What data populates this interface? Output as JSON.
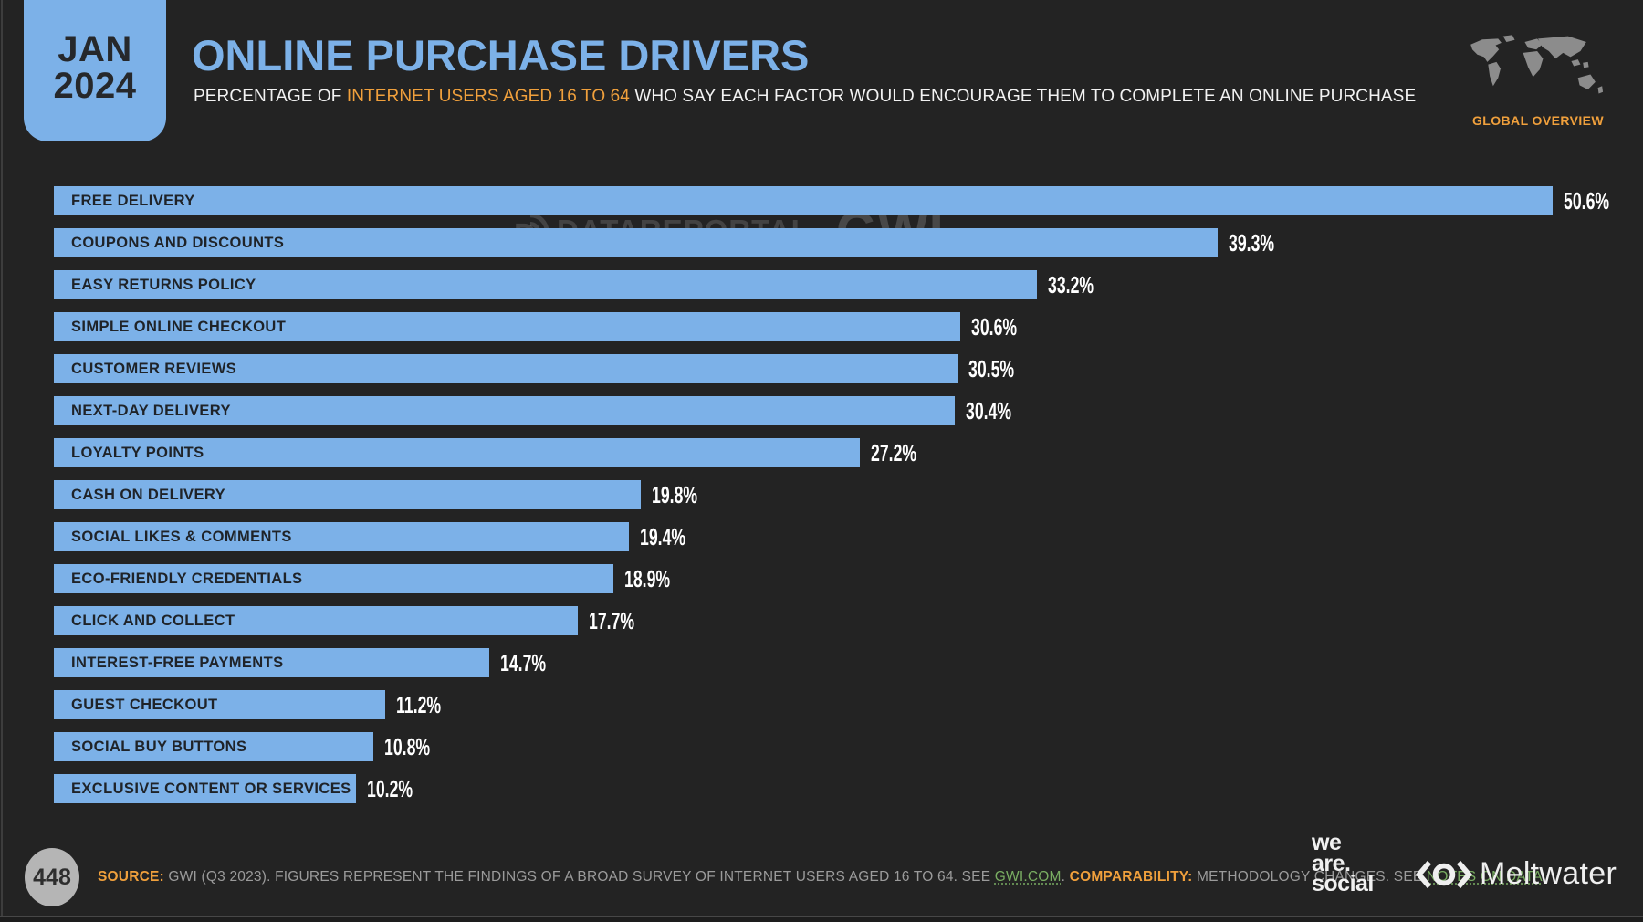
{
  "badge": {
    "month": "JAN",
    "year": "2024"
  },
  "header": {
    "title": "ONLINE PURCHASE DRIVERS",
    "subtitle_prefix": "PERCENTAGE OF ",
    "subtitle_highlight": "INTERNET USERS AGED 16 TO 64",
    "subtitle_suffix": " WHO SAY EACH FACTOR WOULD ENCOURAGE THEM TO COMPLETE AN ONLINE PURCHASE",
    "region_label": "GLOBAL OVERVIEW"
  },
  "watermark": {
    "brand1": "DATAREPORTAL",
    "brand2": "GWI."
  },
  "chart_data": {
    "type": "bar",
    "orientation": "horizontal",
    "title": "ONLINE PURCHASE DRIVERS",
    "xlabel": "",
    "ylabel": "",
    "unit": "%",
    "axis_max": 51.8,
    "grid": false,
    "legend": false,
    "categories": [
      "FREE DELIVERY",
      "COUPONS AND DISCOUNTS",
      "EASY RETURNS POLICY",
      "SIMPLE ONLINE CHECKOUT",
      "CUSTOMER REVIEWS",
      "NEXT-DAY DELIVERY",
      "LOYALTY POINTS",
      "CASH ON DELIVERY",
      "SOCIAL LIKES & COMMENTS",
      "ECO-FRIENDLY CREDENTIALS",
      "CLICK AND COLLECT",
      "INTEREST-FREE PAYMENTS",
      "GUEST CHECKOUT",
      "SOCIAL BUY BUTTONS",
      "EXCLUSIVE CONTENT OR SERVICES"
    ],
    "values": [
      50.6,
      39.3,
      33.2,
      30.6,
      30.5,
      30.4,
      27.2,
      19.8,
      19.4,
      18.9,
      17.7,
      14.7,
      11.2,
      10.8,
      10.2
    ],
    "value_labels": [
      "50.6%",
      "39.3%",
      "33.2%",
      "30.6%",
      "30.5%",
      "30.4%",
      "27.2%",
      "19.8%",
      "19.4%",
      "18.9%",
      "17.7%",
      "14.7%",
      "11.2%",
      "10.8%",
      "10.2%"
    ]
  },
  "footer": {
    "page_number": "448",
    "source_label": "SOURCE:",
    "source_text": " GWI (Q3 2023). FIGURES REPRESENT THE FINDINGS OF A BROAD SURVEY OF INTERNET USERS AGED 16 TO 64. SEE ",
    "gwi_link": "GWI.COM",
    "mid_text": ". ",
    "comparability_label": "COMPARABILITY:",
    "comparability_text": " METHODOLOGY CHANGES. SEE ",
    "notes_link": "NOTES ON DATA",
    "end_text": ".",
    "logos": {
      "we_are_social": [
        "we",
        "are.",
        "social"
      ],
      "meltwater": "Meltwater"
    }
  },
  "colors": {
    "background": "#232323",
    "accent_blue": "#7cb1e8",
    "accent_orange": "#f0a03c",
    "text_dark": "#26282b",
    "gray_text": "#9b9b9b",
    "link_green": "#79ad62",
    "circle_gray": "#b5b5b5",
    "white_text": "#f2f2f2",
    "map_gray": "#8c8c8c",
    "bar_label_dark": "#1f2328"
  }
}
